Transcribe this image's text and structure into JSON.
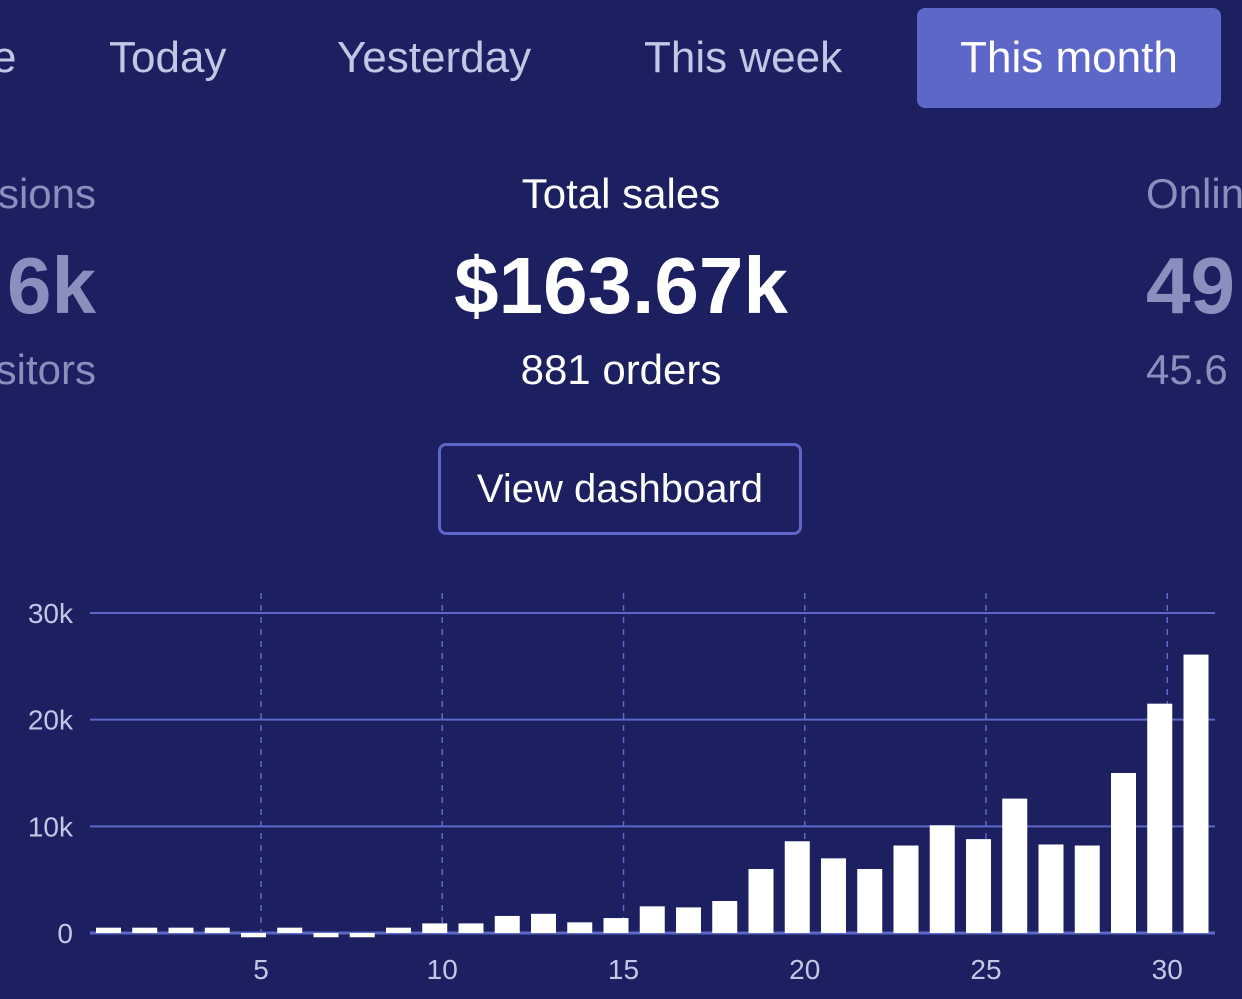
{
  "tabs": [
    {
      "label": "e"
    },
    {
      "label": "Today"
    },
    {
      "label": "Yesterday"
    },
    {
      "label": "This week"
    },
    {
      "label": "This month",
      "active": true
    }
  ],
  "stats": {
    "left": {
      "label": "sions",
      "value": "6k",
      "sub": "sitors"
    },
    "center": {
      "label": "Total sales",
      "value": "$163.67k",
      "sub": "881 orders"
    },
    "right": {
      "label": "Onlin",
      "value": "49",
      "sub": "45.6"
    }
  },
  "button": {
    "label": "View dashboard"
  },
  "colors": {
    "background": "#1c2060",
    "accent": "#5c67c7",
    "bar": "#ffffff"
  },
  "chart_data": {
    "type": "bar",
    "x": [
      1,
      2,
      3,
      4,
      5,
      6,
      7,
      8,
      9,
      10,
      11,
      12,
      13,
      14,
      15,
      16,
      17,
      18,
      19,
      20,
      21,
      22,
      23,
      24,
      25,
      26,
      27,
      28,
      29,
      30,
      31
    ],
    "values": [
      500,
      500,
      500,
      500,
      -400,
      500,
      -400,
      -400,
      500,
      900,
      900,
      1600,
      1800,
      1000,
      1400,
      2500,
      2400,
      3000,
      6000,
      8600,
      7000,
      6000,
      8200,
      10100,
      8800,
      12600,
      8300,
      8200,
      15000,
      21500,
      26100
    ],
    "ylim": [
      0,
      30000
    ],
    "yticks": [
      {
        "v": 0,
        "label": "0"
      },
      {
        "v": 10000,
        "label": "10k"
      },
      {
        "v": 20000,
        "label": "20k"
      },
      {
        "v": 30000,
        "label": "30k"
      }
    ],
    "xticks": [
      {
        "v": 5,
        "label": "5"
      },
      {
        "v": 10,
        "label": "10"
      },
      {
        "v": 15,
        "label": "15"
      },
      {
        "v": 20,
        "label": "20"
      },
      {
        "v": 25,
        "label": "25"
      },
      {
        "v": 30,
        "label": "30"
      }
    ],
    "grid": true
  }
}
